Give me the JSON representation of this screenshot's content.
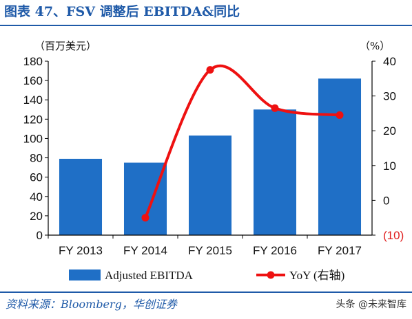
{
  "title": "图表 47、FSV 调整后 EBITDA&同比",
  "left_unit": "（百万美元）",
  "right_unit": "（%）",
  "source": "资料来源：Bloomberg，华创证券",
  "watermark": "头条 @未来智库",
  "colors": {
    "bar": "#1f6fc6",
    "line": "#ee1111",
    "accent": "#1f5aa8"
  },
  "chart_data": {
    "type": "bar",
    "categories": [
      "FY 2013",
      "FY 2014",
      "FY 2015",
      "FY 2016",
      "FY 2017"
    ],
    "series": [
      {
        "name": "Adjusted EBITDA",
        "type": "bar",
        "axis": "left",
        "values": [
          79,
          75,
          103,
          130,
          162
        ]
      },
      {
        "name": "YoY (右轴)",
        "type": "line",
        "axis": "right",
        "smooth": true,
        "values": [
          null,
          -5,
          37.5,
          26.5,
          24.5
        ]
      }
    ],
    "y_left": {
      "min": 0,
      "max": 180,
      "ticks": [
        "0",
        "20",
        "40",
        "60",
        "80",
        "100",
        "120",
        "140",
        "160",
        "180"
      ]
    },
    "y_right": {
      "min": -10,
      "max": 40,
      "ticks": [
        "(10)",
        "0",
        "10",
        "20",
        "30",
        "40"
      ]
    },
    "grid": false,
    "legend_position": "bottom"
  }
}
